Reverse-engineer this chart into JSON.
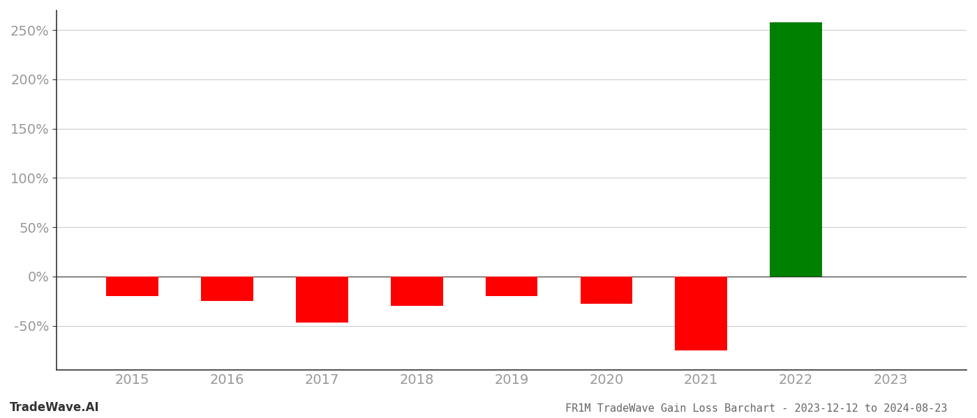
{
  "years": [
    2015,
    2016,
    2017,
    2018,
    2019,
    2020,
    2021,
    2022,
    2023
  ],
  "values": [
    -20.0,
    -25.0,
    -47.0,
    -30.0,
    -20.0,
    -28.0,
    -75.0,
    258.0,
    null
  ],
  "bar_colors": [
    "#ff0000",
    "#ff0000",
    "#ff0000",
    "#ff0000",
    "#ff0000",
    "#ff0000",
    "#ff0000",
    "#008000",
    null
  ],
  "title": "FR1M TradeWave Gain Loss Barchart - 2023-12-12 to 2024-08-23",
  "watermark": "TradeWave.AI",
  "ytick_labels": [
    "-50%",
    "0%",
    "50%",
    "100%",
    "150%",
    "200%",
    "250%"
  ],
  "ytick_values": [
    -50,
    0,
    50,
    100,
    150,
    200,
    250
  ],
  "ylim": [
    -95,
    270
  ],
  "xlim": [
    2014.2,
    2023.8
  ],
  "xlabel": "",
  "ylabel": "",
  "bar_width": 0.55,
  "background_color": "#ffffff",
  "grid_color": "#cccccc",
  "axis_label_color": "#999999",
  "title_color": "#666666",
  "watermark_color": "#333333",
  "title_fontsize": 11,
  "watermark_fontsize": 12,
  "tick_fontsize": 14,
  "spine_color": "#333333",
  "grid_linewidth": 0.8
}
